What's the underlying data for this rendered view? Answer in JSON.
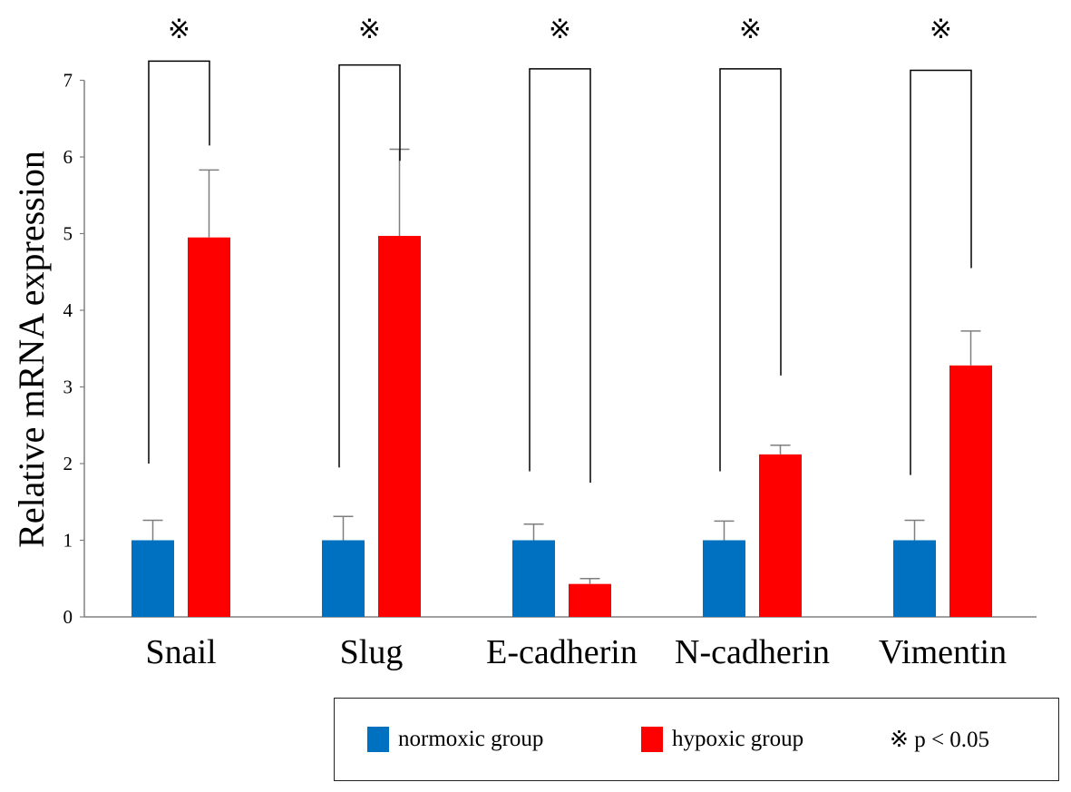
{
  "chart_data": {
    "type": "bar",
    "title": "",
    "xlabel": "",
    "ylabel": "Relative mRNA expression",
    "ylim": [
      0,
      7
    ],
    "yticks": [
      0,
      1,
      2,
      3,
      4,
      5,
      6,
      7
    ],
    "grid": false,
    "categories": [
      "Snail",
      "Slug",
      "E-cadherin",
      "N-cadherin",
      "Vimentin"
    ],
    "series": [
      {
        "name": "normoxic group",
        "color": "#0070C0",
        "values": [
          1.0,
          1.0,
          1.0,
          1.0,
          1.0
        ],
        "errors": [
          0.26,
          0.31,
          0.21,
          0.25,
          0.26
        ]
      },
      {
        "name": "hypoxic group",
        "color": "#FF0000",
        "values": [
          4.95,
          4.97,
          0.43,
          2.12,
          3.28
        ],
        "errors": [
          0.88,
          1.13,
          0.07,
          0.12,
          0.45
        ]
      }
    ],
    "significance": {
      "marker": "※",
      "bracket_left_bottom": [
        2.0,
        1.95,
        1.9,
        1.9,
        1.85
      ],
      "bracket_right_bottom": [
        6.15,
        5.95,
        1.75,
        3.15,
        4.55
      ],
      "bracket_top": [
        7.25,
        7.2,
        7.15,
        7.15,
        7.13
      ]
    },
    "legend": {
      "position": "bottom",
      "normoxic_label": "normoxic group",
      "hypoxic_label": "hypoxic group",
      "significance_label": "※ p < 0.05"
    }
  }
}
